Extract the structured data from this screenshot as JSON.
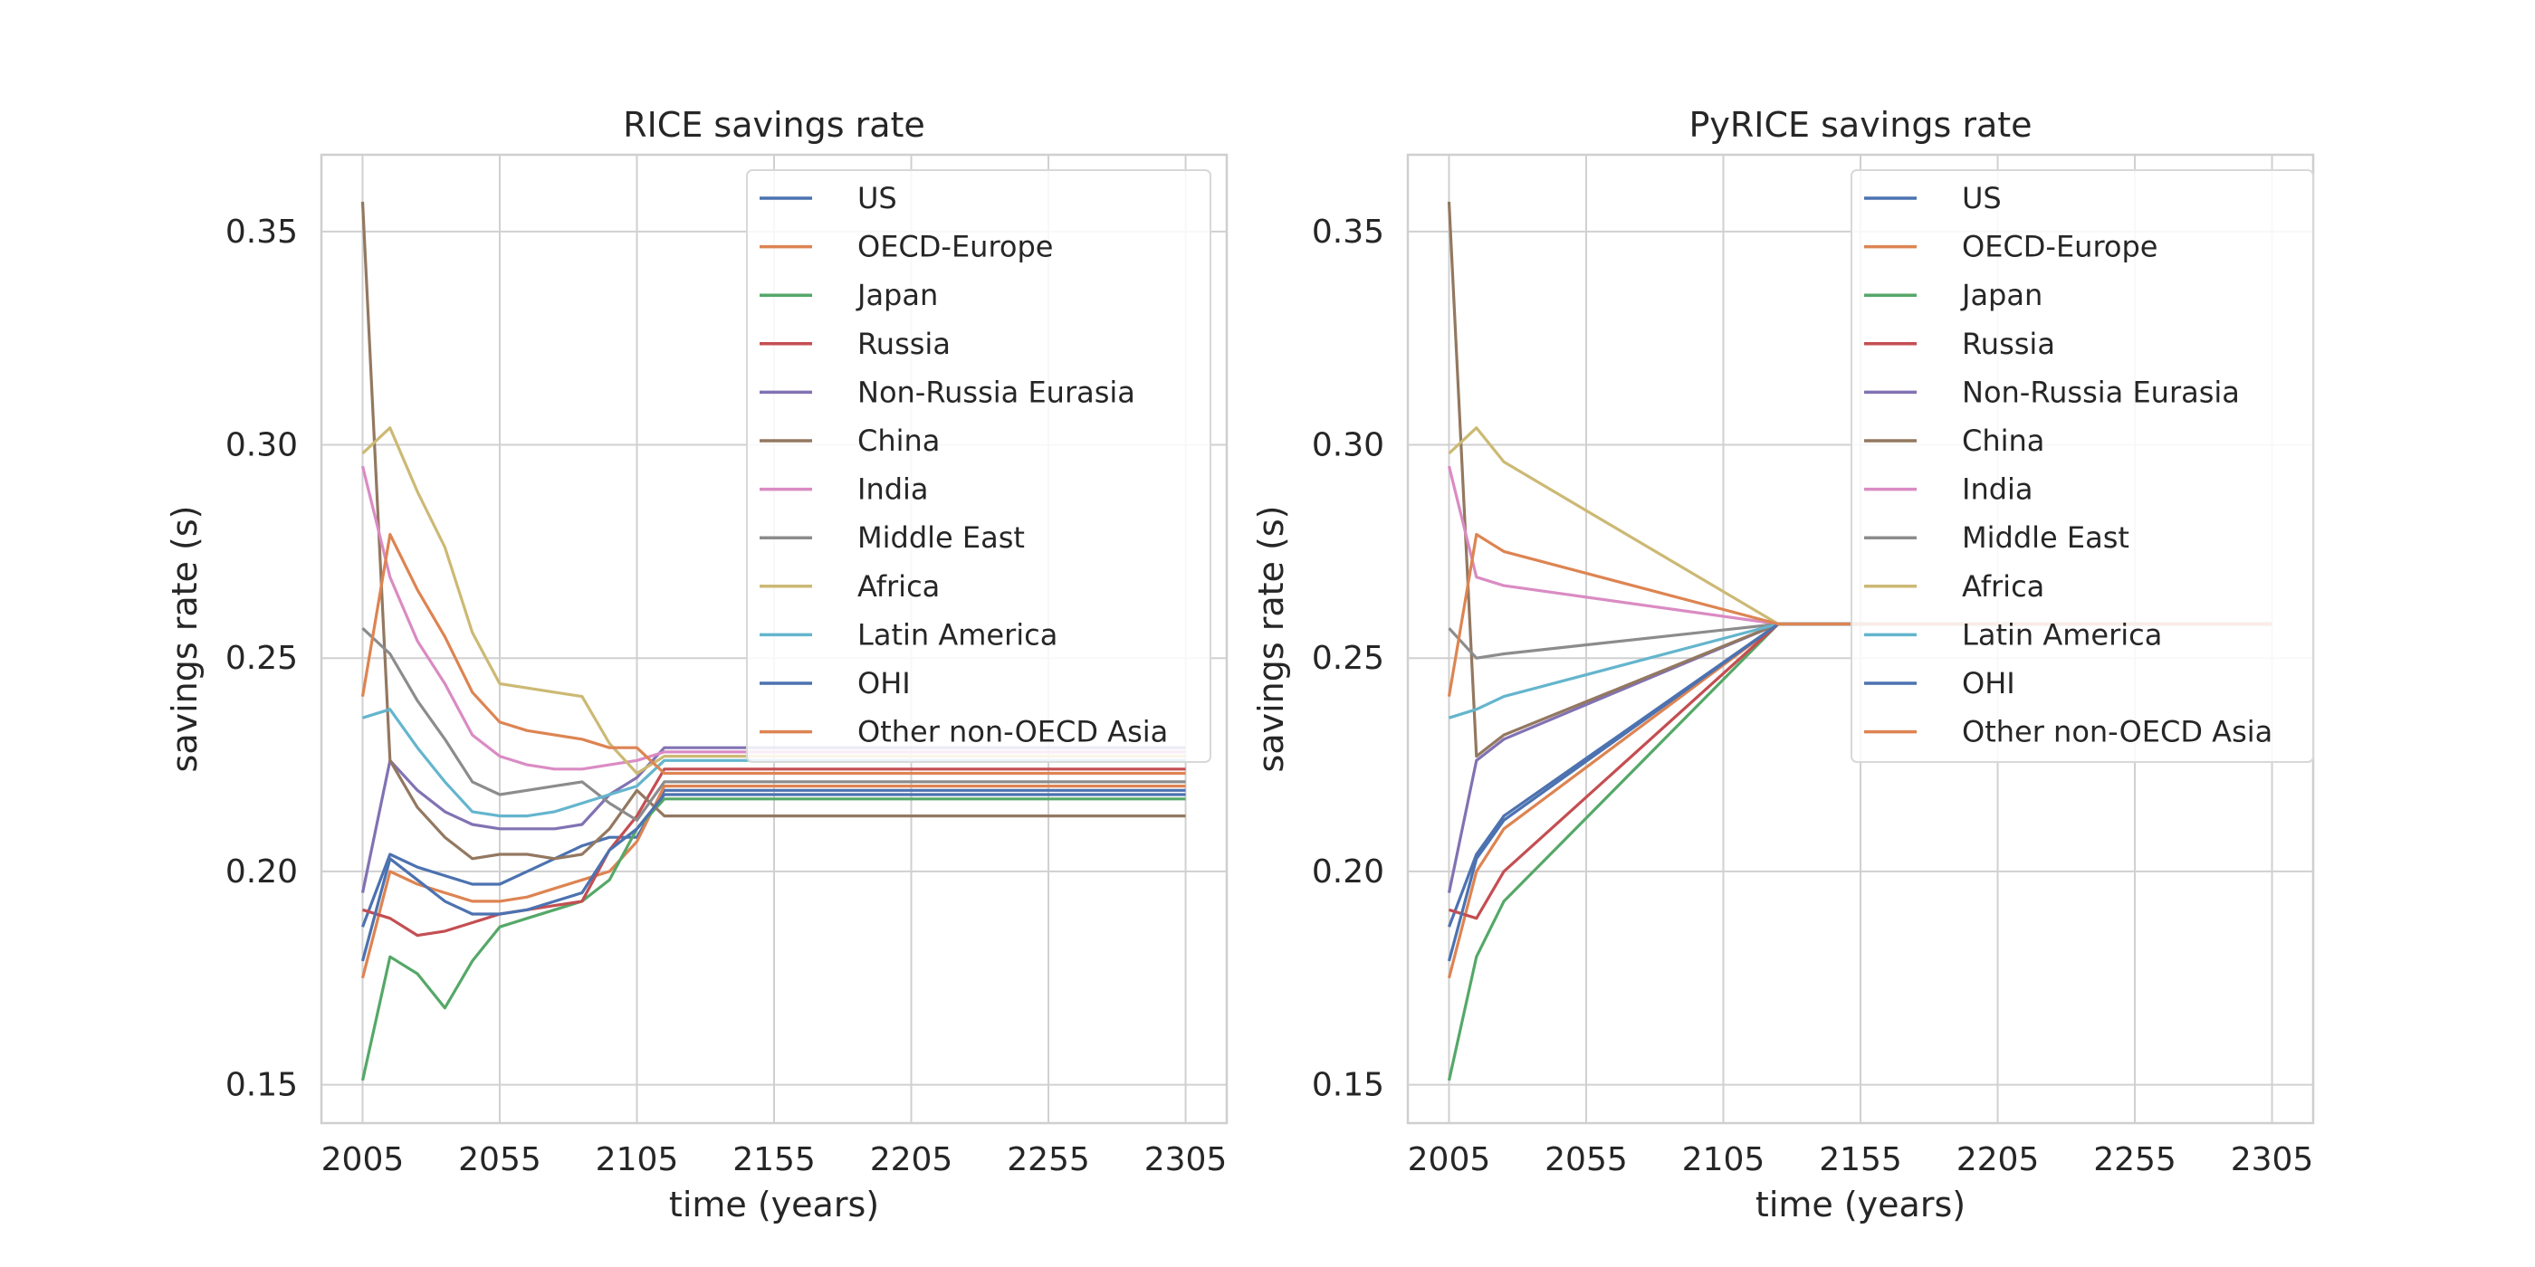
{
  "colors": {
    "US": "#4c72b0",
    "OECD-Europe": "#dd8452",
    "Japan": "#55a868",
    "Russia": "#c44e52",
    "Non-Russia Eurasia": "#8172b3",
    "China": "#937860",
    "India": "#da8bc3",
    "Middle East": "#8c8c8c",
    "Africa": "#ccb974",
    "Latin America": "#64b5cd",
    "OHI": "#4c72b0",
    "Other non-OECD Asia": "#dd8452"
  },
  "chart_data": [
    {
      "type": "line",
      "title": "RICE savings rate",
      "xlabel": "time (years)",
      "ylabel": "savings rate (s)",
      "xlim": [
        1990,
        2320
      ],
      "ylim": [
        0.141,
        0.368
      ],
      "xticks": [
        2005,
        2055,
        2105,
        2155,
        2205,
        2255,
        2305
      ],
      "xtick_labels": [
        "2005",
        "2055",
        "2105",
        "2155",
        "2205",
        "2255",
        "2305"
      ],
      "yticks": [
        0.15,
        0.2,
        0.25,
        0.3,
        0.35
      ],
      "ytick_labels": [
        "0.15",
        "0.20",
        "0.25",
        "0.30",
        "0.35"
      ],
      "grid": true,
      "legend_position": "top-right",
      "series": [
        {
          "name": "US",
          "x": [
            2005,
            2015,
            2025,
            2035,
            2045,
            2055,
            2065,
            2075,
            2085,
            2095,
            2105,
            2115,
            2125,
            2305
          ],
          "y": [
            0.187,
            0.204,
            0.201,
            0.199,
            0.197,
            0.197,
            0.2,
            0.203,
            0.206,
            0.208,
            0.208,
            0.219,
            0.219,
            0.219
          ]
        },
        {
          "name": "OECD-Europe",
          "x": [
            2005,
            2015,
            2025,
            2035,
            2045,
            2055,
            2065,
            2075,
            2085,
            2095,
            2105,
            2115,
            2125,
            2305
          ],
          "y": [
            0.175,
            0.2,
            0.197,
            0.195,
            0.193,
            0.193,
            0.194,
            0.196,
            0.198,
            0.2,
            0.207,
            0.22,
            0.22,
            0.22
          ]
        },
        {
          "name": "Japan",
          "x": [
            2005,
            2015,
            2025,
            2035,
            2045,
            2055,
            2065,
            2075,
            2085,
            2095,
            2105,
            2115,
            2125,
            2305
          ],
          "y": [
            0.151,
            0.18,
            0.176,
            0.168,
            0.179,
            0.187,
            0.189,
            0.191,
            0.193,
            0.198,
            0.21,
            0.217,
            0.217,
            0.217
          ]
        },
        {
          "name": "Russia",
          "x": [
            2005,
            2015,
            2025,
            2035,
            2045,
            2055,
            2065,
            2075,
            2085,
            2095,
            2105,
            2115,
            2125,
            2305
          ],
          "y": [
            0.191,
            0.189,
            0.185,
            0.186,
            0.188,
            0.19,
            0.191,
            0.192,
            0.193,
            0.205,
            0.213,
            0.224,
            0.224,
            0.224
          ]
        },
        {
          "name": "Non-Russia Eurasia",
          "x": [
            2005,
            2015,
            2025,
            2035,
            2045,
            2055,
            2065,
            2075,
            2085,
            2095,
            2105,
            2115,
            2125,
            2305
          ],
          "y": [
            0.195,
            0.226,
            0.219,
            0.214,
            0.211,
            0.21,
            0.21,
            0.21,
            0.211,
            0.218,
            0.222,
            0.229,
            0.229,
            0.229
          ]
        },
        {
          "name": "China",
          "x": [
            2005,
            2015,
            2025,
            2035,
            2045,
            2055,
            2065,
            2075,
            2085,
            2095,
            2105,
            2115,
            2125,
            2305
          ],
          "y": [
            0.357,
            0.226,
            0.215,
            0.208,
            0.203,
            0.204,
            0.204,
            0.203,
            0.204,
            0.21,
            0.219,
            0.213,
            0.213,
            0.213
          ]
        },
        {
          "name": "India",
          "x": [
            2005,
            2015,
            2025,
            2035,
            2045,
            2055,
            2065,
            2075,
            2085,
            2095,
            2105,
            2115,
            2125,
            2305
          ],
          "y": [
            0.295,
            0.269,
            0.254,
            0.244,
            0.232,
            0.227,
            0.225,
            0.224,
            0.224,
            0.225,
            0.226,
            0.228,
            0.228,
            0.228
          ]
        },
        {
          "name": "Middle East",
          "x": [
            2005,
            2015,
            2025,
            2035,
            2045,
            2055,
            2065,
            2075,
            2085,
            2095,
            2105,
            2115,
            2125,
            2305
          ],
          "y": [
            0.257,
            0.251,
            0.24,
            0.231,
            0.221,
            0.218,
            0.219,
            0.22,
            0.221,
            0.216,
            0.212,
            0.221,
            0.221,
            0.221
          ]
        },
        {
          "name": "Africa",
          "x": [
            2005,
            2015,
            2025,
            2035,
            2045,
            2055,
            2065,
            2075,
            2085,
            2095,
            2105,
            2115,
            2125,
            2305
          ],
          "y": [
            0.298,
            0.304,
            0.289,
            0.276,
            0.256,
            0.244,
            0.243,
            0.242,
            0.241,
            0.23,
            0.223,
            0.227,
            0.227,
            0.227
          ]
        },
        {
          "name": "Latin America",
          "x": [
            2005,
            2015,
            2025,
            2035,
            2045,
            2055,
            2065,
            2075,
            2085,
            2095,
            2105,
            2115,
            2125,
            2305
          ],
          "y": [
            0.236,
            0.238,
            0.229,
            0.221,
            0.214,
            0.213,
            0.213,
            0.214,
            0.216,
            0.218,
            0.22,
            0.226,
            0.226,
            0.226
          ]
        },
        {
          "name": "OHI",
          "x": [
            2005,
            2015,
            2025,
            2035,
            2045,
            2055,
            2065,
            2075,
            2085,
            2095,
            2105,
            2115,
            2125,
            2305
          ],
          "y": [
            0.179,
            0.203,
            0.198,
            0.193,
            0.19,
            0.19,
            0.191,
            0.193,
            0.195,
            0.205,
            0.21,
            0.218,
            0.218,
            0.218
          ]
        },
        {
          "name": "Other non-OECD Asia",
          "x": [
            2005,
            2015,
            2025,
            2035,
            2045,
            2055,
            2065,
            2075,
            2085,
            2095,
            2105,
            2115,
            2125,
            2305
          ],
          "y": [
            0.241,
            0.279,
            0.266,
            0.255,
            0.242,
            0.235,
            0.233,
            0.232,
            0.231,
            0.229,
            0.229,
            0.223,
            0.223,
            0.223
          ]
        }
      ]
    },
    {
      "type": "line",
      "title": "PyRICE savings rate",
      "xlabel": "time (years)",
      "ylabel": "savings rate (s)",
      "xlim": [
        1990,
        2320
      ],
      "ylim": [
        0.141,
        0.368
      ],
      "xticks": [
        2005,
        2055,
        2105,
        2155,
        2205,
        2255,
        2305
      ],
      "xtick_labels": [
        "2005",
        "2055",
        "2105",
        "2155",
        "2205",
        "2255",
        "2305"
      ],
      "yticks": [
        0.15,
        0.2,
        0.25,
        0.3,
        0.35
      ],
      "ytick_labels": [
        "0.15",
        "0.20",
        "0.25",
        "0.30",
        "0.35"
      ],
      "grid": true,
      "legend_position": "top-right",
      "series": [
        {
          "name": "US",
          "x": [
            2005,
            2015,
            2025,
            2125,
            2305
          ],
          "y": [
            0.187,
            0.204,
            0.213,
            0.258,
            0.258
          ]
        },
        {
          "name": "OECD-Europe",
          "x": [
            2005,
            2015,
            2025,
            2125,
            2305
          ],
          "y": [
            0.175,
            0.2,
            0.21,
            0.258,
            0.258
          ]
        },
        {
          "name": "Japan",
          "x": [
            2005,
            2015,
            2025,
            2125,
            2305
          ],
          "y": [
            0.151,
            0.18,
            0.193,
            0.258,
            0.258
          ]
        },
        {
          "name": "Russia",
          "x": [
            2005,
            2015,
            2025,
            2125,
            2305
          ],
          "y": [
            0.191,
            0.189,
            0.2,
            0.258,
            0.258
          ]
        },
        {
          "name": "Non-Russia Eurasia",
          "x": [
            2005,
            2015,
            2025,
            2125,
            2305
          ],
          "y": [
            0.195,
            0.226,
            0.231,
            0.258,
            0.258
          ]
        },
        {
          "name": "China",
          "x": [
            2005,
            2015,
            2025,
            2125,
            2305
          ],
          "y": [
            0.357,
            0.227,
            0.232,
            0.258,
            0.258
          ]
        },
        {
          "name": "India",
          "x": [
            2005,
            2015,
            2025,
            2125,
            2305
          ],
          "y": [
            0.295,
            0.269,
            0.267,
            0.258,
            0.258
          ]
        },
        {
          "name": "Middle East",
          "x": [
            2005,
            2015,
            2025,
            2125,
            2305
          ],
          "y": [
            0.257,
            0.25,
            0.251,
            0.258,
            0.258
          ]
        },
        {
          "name": "Africa",
          "x": [
            2005,
            2015,
            2025,
            2125,
            2305
          ],
          "y": [
            0.298,
            0.304,
            0.296,
            0.258,
            0.258
          ]
        },
        {
          "name": "Latin America",
          "x": [
            2005,
            2015,
            2025,
            2125,
            2305
          ],
          "y": [
            0.236,
            0.238,
            0.241,
            0.258,
            0.258
          ]
        },
        {
          "name": "OHI",
          "x": [
            2005,
            2015,
            2025,
            2125,
            2305
          ],
          "y": [
            0.179,
            0.203,
            0.212,
            0.258,
            0.258
          ]
        },
        {
          "name": "Other non-OECD Asia",
          "x": [
            2005,
            2015,
            2025,
            2125,
            2305
          ],
          "y": [
            0.241,
            0.279,
            0.275,
            0.258,
            0.258
          ]
        }
      ]
    }
  ]
}
